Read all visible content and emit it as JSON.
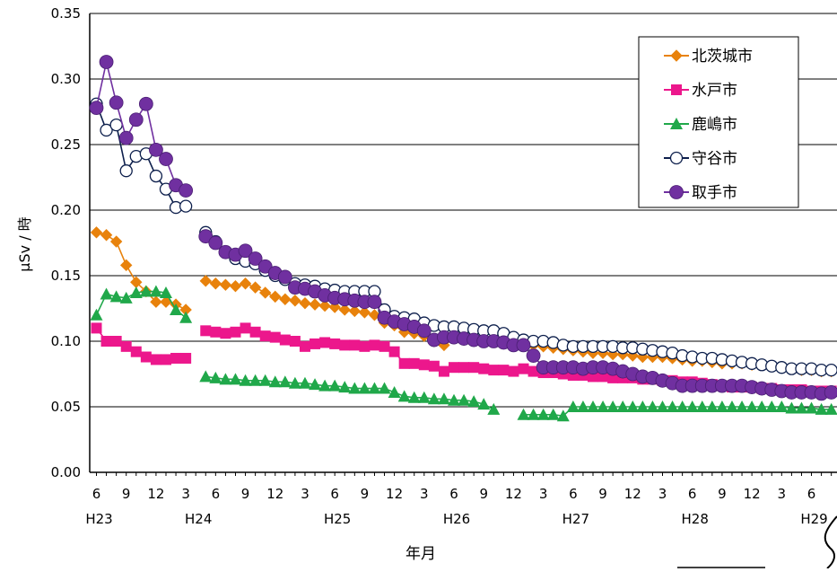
{
  "chart_data": {
    "type": "line",
    "xlabel": "年月",
    "ylabel": "μSv / 時",
    "ylim": [
      0,
      0.35
    ],
    "yticks": [
      "0.00",
      "0.05",
      "0.10",
      "0.15",
      "0.20",
      "0.25",
      "0.30",
      "0.35"
    ],
    "grid": "horizontal",
    "legend_position": "top-right",
    "month_tick_labels": [
      "6",
      "9",
      "12",
      "3",
      "6",
      "9",
      "12",
      "3",
      "6",
      "9",
      "12",
      "3",
      "6",
      "9",
      "12",
      "3",
      "6",
      "9",
      "12",
      "3",
      "6",
      "9",
      "12",
      "3",
      "6"
    ],
    "year_labels": [
      {
        "label": "H23",
        "month_index": 0
      },
      {
        "label": "H24",
        "month_index": 10
      },
      {
        "label": "H25",
        "month_index": 24
      },
      {
        "label": "H26",
        "month_index": 36
      },
      {
        "label": "H27",
        "month_index": 48
      },
      {
        "label": "H28",
        "month_index": 60
      },
      {
        "label": "H29",
        "month_index": 72
      }
    ],
    "x_range": [
      0,
      74
    ],
    "series": [
      {
        "name": "北茨城市",
        "color": "#e8820c",
        "marker": "diamond",
        "x": [
          0,
          1,
          2,
          3,
          4,
          5,
          6,
          7,
          8,
          9,
          11,
          12,
          13,
          14,
          15,
          16,
          17,
          18,
          19,
          20,
          21,
          22,
          23,
          24,
          25,
          26,
          27,
          28,
          29,
          30,
          31,
          32,
          33,
          34,
          35,
          36,
          37,
          38,
          39,
          40,
          41,
          42,
          43,
          44,
          45,
          46,
          47,
          48,
          49,
          50,
          51,
          52,
          53,
          54,
          55,
          56,
          57,
          58,
          59,
          60,
          61,
          62,
          63,
          64,
          65,
          66,
          67,
          68,
          69,
          70,
          71,
          72,
          73,
          74
        ],
        "y": [
          0.183,
          0.181,
          0.176,
          0.158,
          0.145,
          0.138,
          0.13,
          0.13,
          0.128,
          0.124,
          0.146,
          0.144,
          0.143,
          0.142,
          0.144,
          0.141,
          0.137,
          0.134,
          0.132,
          0.131,
          0.129,
          0.128,
          0.127,
          0.126,
          0.124,
          0.123,
          0.122,
          0.12,
          0.114,
          0.112,
          0.107,
          0.106,
          0.104,
          0.1,
          0.097,
          0.102,
          0.101,
          0.101,
          0.1,
          0.1,
          0.099,
          0.099,
          0.098,
          0.097,
          0.096,
          0.095,
          0.094,
          0.093,
          0.092,
          0.091,
          0.091,
          0.09,
          0.09,
          0.089,
          0.088,
          0.088,
          0.088,
          0.087,
          0.086,
          0.085,
          0.085,
          0.084,
          0.083,
          0.083,
          0.083,
          0.082,
          0.082,
          0.081,
          0.08,
          0.079,
          0.078,
          0.078,
          0.077,
          0.077
        ]
      },
      {
        "name": "水戸市",
        "color": "#ec178c",
        "marker": "square",
        "x": [
          0,
          1,
          2,
          3,
          4,
          5,
          6,
          7,
          8,
          9,
          11,
          12,
          13,
          14,
          15,
          16,
          17,
          18,
          19,
          20,
          21,
          22,
          23,
          24,
          25,
          26,
          27,
          28,
          29,
          30,
          31,
          32,
          33,
          34,
          35,
          36,
          37,
          38,
          39,
          40,
          41,
          42,
          43,
          44,
          45,
          46,
          47,
          48,
          49,
          50,
          51,
          52,
          53,
          54,
          55,
          56,
          57,
          58,
          59,
          60,
          61,
          62,
          63,
          64,
          65,
          66,
          67,
          68,
          69,
          70,
          71,
          72,
          73,
          74
        ],
        "y": [
          0.11,
          0.1,
          0.1,
          0.096,
          0.092,
          0.088,
          0.086,
          0.086,
          0.087,
          0.087,
          0.108,
          0.107,
          0.106,
          0.107,
          0.11,
          0.107,
          0.104,
          0.103,
          0.101,
          0.1,
          0.096,
          0.098,
          0.099,
          0.098,
          0.097,
          0.097,
          0.096,
          0.097,
          0.096,
          0.092,
          0.083,
          0.083,
          0.082,
          0.081,
          0.077,
          0.08,
          0.08,
          0.08,
          0.079,
          0.078,
          0.078,
          0.077,
          0.079,
          0.077,
          0.076,
          0.076,
          0.075,
          0.074,
          0.074,
          0.073,
          0.073,
          0.072,
          0.072,
          0.072,
          0.071,
          0.071,
          0.07,
          0.07,
          0.069,
          0.069,
          0.068,
          0.067,
          0.066,
          0.065,
          0.065,
          0.065,
          0.064,
          0.064,
          0.063,
          0.063,
          0.063,
          0.062,
          0.062,
          0.062
        ]
      },
      {
        "name": "鹿嶋市",
        "color": "#20a84a",
        "marker": "triangle",
        "x": [
          0,
          1,
          2,
          3,
          4,
          5,
          6,
          7,
          8,
          9,
          11,
          12,
          13,
          14,
          15,
          16,
          17,
          18,
          19,
          20,
          21,
          22,
          23,
          24,
          25,
          26,
          27,
          28,
          29,
          30,
          31,
          32,
          33,
          34,
          35,
          36,
          37,
          38,
          39,
          40,
          43,
          44,
          45,
          46,
          47,
          48,
          49,
          50,
          51,
          52,
          53,
          54,
          55,
          56,
          57,
          58,
          59,
          60,
          61,
          62,
          63,
          64,
          65,
          66,
          67,
          68,
          69,
          70,
          71,
          72,
          73,
          74
        ],
        "y": [
          0.12,
          0.136,
          0.134,
          0.133,
          0.137,
          0.138,
          0.138,
          0.137,
          0.124,
          0.118,
          0.073,
          0.072,
          0.071,
          0.071,
          0.07,
          0.07,
          0.07,
          0.069,
          0.069,
          0.068,
          0.068,
          0.067,
          0.066,
          0.066,
          0.065,
          0.064,
          0.064,
          0.064,
          0.064,
          0.061,
          0.058,
          0.057,
          0.057,
          0.056,
          0.056,
          0.055,
          0.055,
          0.054,
          0.052,
          0.048,
          0.044,
          0.044,
          0.044,
          0.044,
          0.043,
          0.05,
          0.05,
          0.05,
          0.05,
          0.05,
          0.05,
          0.05,
          0.05,
          0.05,
          0.05,
          0.05,
          0.05,
          0.05,
          0.05,
          0.05,
          0.05,
          0.05,
          0.05,
          0.05,
          0.05,
          0.05,
          0.05,
          0.049,
          0.049,
          0.049,
          0.048,
          0.048
        ]
      },
      {
        "name": "守谷市",
        "color": "#0d1f4c",
        "marker": "circle-open",
        "x": [
          0,
          1,
          2,
          3,
          4,
          5,
          6,
          7,
          8,
          9,
          11,
          12,
          13,
          14,
          15,
          16,
          17,
          18,
          19,
          20,
          21,
          22,
          23,
          24,
          25,
          26,
          27,
          28,
          29,
          30,
          31,
          32,
          33,
          34,
          35,
          36,
          37,
          38,
          39,
          40,
          41,
          42,
          43,
          44,
          45,
          46,
          47,
          48,
          49,
          50,
          51,
          52,
          53,
          54,
          55,
          56,
          57,
          58,
          59,
          60,
          61,
          62,
          63,
          64,
          65,
          66,
          67,
          68,
          69,
          70,
          71,
          72,
          73,
          74
        ],
        "y": [
          0.281,
          0.261,
          0.265,
          0.23,
          0.241,
          0.243,
          0.226,
          0.216,
          0.202,
          0.203,
          0.183,
          0.176,
          0.168,
          0.163,
          0.161,
          0.159,
          0.154,
          0.15,
          0.147,
          0.144,
          0.143,
          0.142,
          0.14,
          0.139,
          0.138,
          0.138,
          0.138,
          0.138,
          0.124,
          0.119,
          0.118,
          0.117,
          0.114,
          0.112,
          0.111,
          0.111,
          0.11,
          0.109,
          0.108,
          0.108,
          0.106,
          0.103,
          0.101,
          0.1,
          0.1,
          0.099,
          0.097,
          0.096,
          0.096,
          0.096,
          0.096,
          0.096,
          0.095,
          0.095,
          0.094,
          0.093,
          0.092,
          0.091,
          0.089,
          0.088,
          0.087,
          0.087,
          0.086,
          0.085,
          0.084,
          0.083,
          0.082,
          0.081,
          0.08,
          0.079,
          0.079,
          0.079,
          0.078,
          0.078
        ]
      },
      {
        "name": "取手市",
        "color": "#7030a0",
        "marker": "circle",
        "x": [
          0,
          1,
          2,
          3,
          4,
          5,
          6,
          7,
          8,
          9,
          11,
          12,
          13,
          14,
          15,
          16,
          17,
          18,
          19,
          20,
          21,
          22,
          23,
          24,
          25,
          26,
          27,
          28,
          29,
          30,
          31,
          32,
          33,
          34,
          35,
          36,
          37,
          38,
          39,
          40,
          41,
          42,
          43,
          44,
          45,
          46,
          47,
          48,
          49,
          50,
          51,
          52,
          53,
          54,
          55,
          56,
          57,
          58,
          59,
          60,
          61,
          62,
          63,
          64,
          65,
          66,
          67,
          68,
          69,
          70,
          71,
          72,
          73,
          74
        ],
        "y": [
          0.278,
          0.313,
          0.282,
          0.255,
          0.269,
          0.281,
          0.246,
          0.239,
          0.219,
          0.215,
          0.18,
          0.175,
          0.168,
          0.166,
          0.169,
          0.163,
          0.157,
          0.152,
          0.149,
          0.141,
          0.14,
          0.138,
          0.135,
          0.133,
          0.132,
          0.131,
          0.13,
          0.13,
          0.118,
          0.115,
          0.113,
          0.111,
          0.108,
          0.101,
          0.103,
          0.103,
          0.102,
          0.101,
          0.1,
          0.1,
          0.099,
          0.097,
          0.097,
          0.089,
          0.08,
          0.08,
          0.08,
          0.08,
          0.079,
          0.08,
          0.08,
          0.079,
          0.077,
          0.075,
          0.073,
          0.072,
          0.07,
          0.068,
          0.066,
          0.066,
          0.066,
          0.066,
          0.066,
          0.066,
          0.066,
          0.065,
          0.064,
          0.063,
          0.062,
          0.061,
          0.061,
          0.061,
          0.06,
          0.061
        ]
      }
    ]
  }
}
